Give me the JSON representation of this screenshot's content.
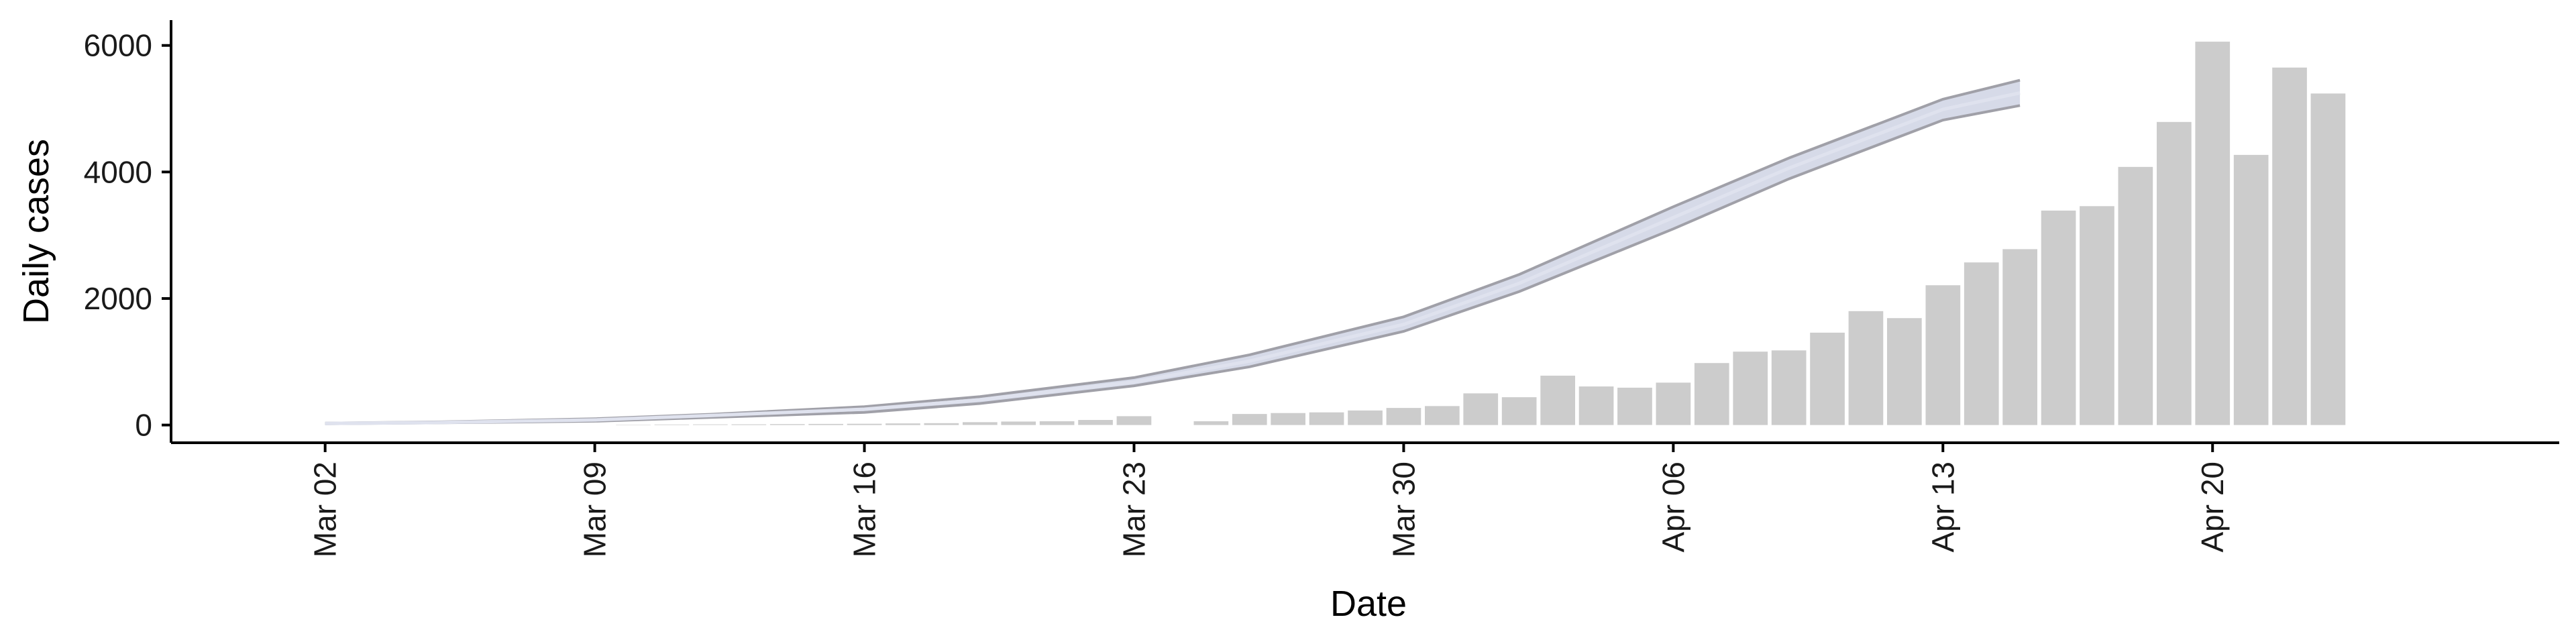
{
  "chart_data": {
    "type": "bar",
    "xlabel": "Date",
    "ylabel": "Daily cases",
    "x_tick_labels": [
      "Mar 02",
      "Mar 09",
      "Mar 16",
      "Mar 23",
      "Mar 30",
      "Apr 06",
      "Apr 13",
      "Apr 20"
    ],
    "y_ticks": [
      0,
      2000,
      4000,
      6000
    ],
    "ylim": [
      -280,
      6400
    ],
    "xlim": [
      "2020-02-27",
      "2020-04-29"
    ],
    "grid": false,
    "colors": {
      "bars": "#cccccc",
      "projection_band": "#c8cde0",
      "projection_line": "#a0a0a8",
      "axis": "#000000"
    },
    "daily_cases": {
      "dates": [
        "2020-03-10",
        "2020-03-11",
        "2020-03-12",
        "2020-03-13",
        "2020-03-14",
        "2020-03-15",
        "2020-03-16",
        "2020-03-17",
        "2020-03-18",
        "2020-03-19",
        "2020-03-20",
        "2020-03-21",
        "2020-03-22",
        "2020-03-23",
        "2020-03-24",
        "2020-03-25",
        "2020-03-26",
        "2020-03-27",
        "2020-03-28",
        "2020-03-29",
        "2020-03-30",
        "2020-03-31",
        "2020-04-01",
        "2020-04-02",
        "2020-04-03",
        "2020-04-04",
        "2020-04-05",
        "2020-04-06",
        "2020-04-07",
        "2020-04-08",
        "2020-04-09",
        "2020-04-10",
        "2020-04-11",
        "2020-04-12",
        "2020-04-13",
        "2020-04-14",
        "2020-04-15",
        "2020-04-16",
        "2020-04-17",
        "2020-04-18",
        "2020-04-19",
        "2020-04-20",
        "2020-04-21",
        "2020-04-22",
        "2020-04-23",
        "2020-04-24"
      ],
      "values": [
        5,
        8,
        10,
        12,
        15,
        18,
        20,
        25,
        30,
        45,
        55,
        60,
        80,
        140,
        0,
        60,
        175,
        190,
        200,
        230,
        270,
        300,
        500,
        440,
        780,
        610,
        590,
        670,
        980,
        1160,
        1180,
        1460,
        1800,
        1690,
        2210,
        2570,
        2780,
        3390,
        3460,
        4080,
        4790,
        6060,
        4270,
        5650,
        5240,
        0
      ]
    },
    "projection": {
      "dates": [
        "2020-03-02",
        "2020-03-05",
        "2020-03-09",
        "2020-03-12",
        "2020-03-16",
        "2020-03-19",
        "2020-03-23",
        "2020-03-26",
        "2020-03-30",
        "2020-04-02",
        "2020-04-06",
        "2020-04-09",
        "2020-04-13",
        "2020-04-15"
      ],
      "upper": [
        30,
        50,
        100,
        170,
        290,
        450,
        750,
        1110,
        1710,
        2380,
        3450,
        4220,
        5150,
        5450
      ],
      "median": [
        25,
        40,
        80,
        150,
        250,
        400,
        680,
        1010,
        1590,
        2240,
        3280,
        4060,
        4990,
        5250
      ],
      "lower": [
        20,
        35,
        60,
        120,
        200,
        340,
        620,
        920,
        1480,
        2110,
        3100,
        3890,
        4820,
        5050
      ]
    }
  }
}
